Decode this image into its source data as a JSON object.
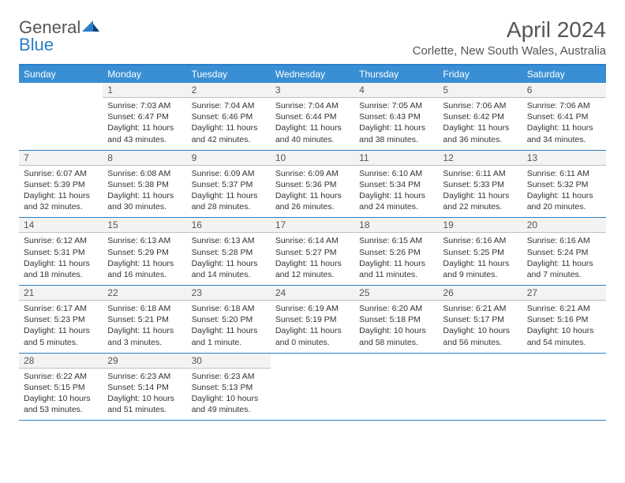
{
  "brand": {
    "part1": "General",
    "part2": "Blue"
  },
  "title": "April 2024",
  "subtitle": "Corlette, New South Wales, Australia",
  "colors": {
    "header_bg": "#3a8fd4",
    "border": "#2a7fc9",
    "text": "#333333",
    "muted": "#555555",
    "daynum_bg": "#f3f3f3"
  },
  "day_names": [
    "Sunday",
    "Monday",
    "Tuesday",
    "Wednesday",
    "Thursday",
    "Friday",
    "Saturday"
  ],
  "weeks": [
    [
      {
        "empty": true
      },
      {
        "n": "1",
        "sunrise": "7:03 AM",
        "sunset": "6:47 PM",
        "daylight": "11 hours and 43 minutes."
      },
      {
        "n": "2",
        "sunrise": "7:04 AM",
        "sunset": "6:46 PM",
        "daylight": "11 hours and 42 minutes."
      },
      {
        "n": "3",
        "sunrise": "7:04 AM",
        "sunset": "6:44 PM",
        "daylight": "11 hours and 40 minutes."
      },
      {
        "n": "4",
        "sunrise": "7:05 AM",
        "sunset": "6:43 PM",
        "daylight": "11 hours and 38 minutes."
      },
      {
        "n": "5",
        "sunrise": "7:06 AM",
        "sunset": "6:42 PM",
        "daylight": "11 hours and 36 minutes."
      },
      {
        "n": "6",
        "sunrise": "7:06 AM",
        "sunset": "6:41 PM",
        "daylight": "11 hours and 34 minutes."
      }
    ],
    [
      {
        "n": "7",
        "sunrise": "6:07 AM",
        "sunset": "5:39 PM",
        "daylight": "11 hours and 32 minutes."
      },
      {
        "n": "8",
        "sunrise": "6:08 AM",
        "sunset": "5:38 PM",
        "daylight": "11 hours and 30 minutes."
      },
      {
        "n": "9",
        "sunrise": "6:09 AM",
        "sunset": "5:37 PM",
        "daylight": "11 hours and 28 minutes."
      },
      {
        "n": "10",
        "sunrise": "6:09 AM",
        "sunset": "5:36 PM",
        "daylight": "11 hours and 26 minutes."
      },
      {
        "n": "11",
        "sunrise": "6:10 AM",
        "sunset": "5:34 PM",
        "daylight": "11 hours and 24 minutes."
      },
      {
        "n": "12",
        "sunrise": "6:11 AM",
        "sunset": "5:33 PM",
        "daylight": "11 hours and 22 minutes."
      },
      {
        "n": "13",
        "sunrise": "6:11 AM",
        "sunset": "5:32 PM",
        "daylight": "11 hours and 20 minutes."
      }
    ],
    [
      {
        "n": "14",
        "sunrise": "6:12 AM",
        "sunset": "5:31 PM",
        "daylight": "11 hours and 18 minutes."
      },
      {
        "n": "15",
        "sunrise": "6:13 AM",
        "sunset": "5:29 PM",
        "daylight": "11 hours and 16 minutes."
      },
      {
        "n": "16",
        "sunrise": "6:13 AM",
        "sunset": "5:28 PM",
        "daylight": "11 hours and 14 minutes."
      },
      {
        "n": "17",
        "sunrise": "6:14 AM",
        "sunset": "5:27 PM",
        "daylight": "11 hours and 12 minutes."
      },
      {
        "n": "18",
        "sunrise": "6:15 AM",
        "sunset": "5:26 PM",
        "daylight": "11 hours and 11 minutes."
      },
      {
        "n": "19",
        "sunrise": "6:16 AM",
        "sunset": "5:25 PM",
        "daylight": "11 hours and 9 minutes."
      },
      {
        "n": "20",
        "sunrise": "6:16 AM",
        "sunset": "5:24 PM",
        "daylight": "11 hours and 7 minutes."
      }
    ],
    [
      {
        "n": "21",
        "sunrise": "6:17 AM",
        "sunset": "5:23 PM",
        "daylight": "11 hours and 5 minutes."
      },
      {
        "n": "22",
        "sunrise": "6:18 AM",
        "sunset": "5:21 PM",
        "daylight": "11 hours and 3 minutes."
      },
      {
        "n": "23",
        "sunrise": "6:18 AM",
        "sunset": "5:20 PM",
        "daylight": "11 hours and 1 minute."
      },
      {
        "n": "24",
        "sunrise": "6:19 AM",
        "sunset": "5:19 PM",
        "daylight": "11 hours and 0 minutes."
      },
      {
        "n": "25",
        "sunrise": "6:20 AM",
        "sunset": "5:18 PM",
        "daylight": "10 hours and 58 minutes."
      },
      {
        "n": "26",
        "sunrise": "6:21 AM",
        "sunset": "5:17 PM",
        "daylight": "10 hours and 56 minutes."
      },
      {
        "n": "27",
        "sunrise": "6:21 AM",
        "sunset": "5:16 PM",
        "daylight": "10 hours and 54 minutes."
      }
    ],
    [
      {
        "n": "28",
        "sunrise": "6:22 AM",
        "sunset": "5:15 PM",
        "daylight": "10 hours and 53 minutes."
      },
      {
        "n": "29",
        "sunrise": "6:23 AM",
        "sunset": "5:14 PM",
        "daylight": "10 hours and 51 minutes."
      },
      {
        "n": "30",
        "sunrise": "6:23 AM",
        "sunset": "5:13 PM",
        "daylight": "10 hours and 49 minutes."
      },
      {
        "empty": true
      },
      {
        "empty": true
      },
      {
        "empty": true
      },
      {
        "empty": true
      }
    ]
  ],
  "labels": {
    "sunrise": "Sunrise:",
    "sunset": "Sunset:",
    "daylight": "Daylight:"
  }
}
